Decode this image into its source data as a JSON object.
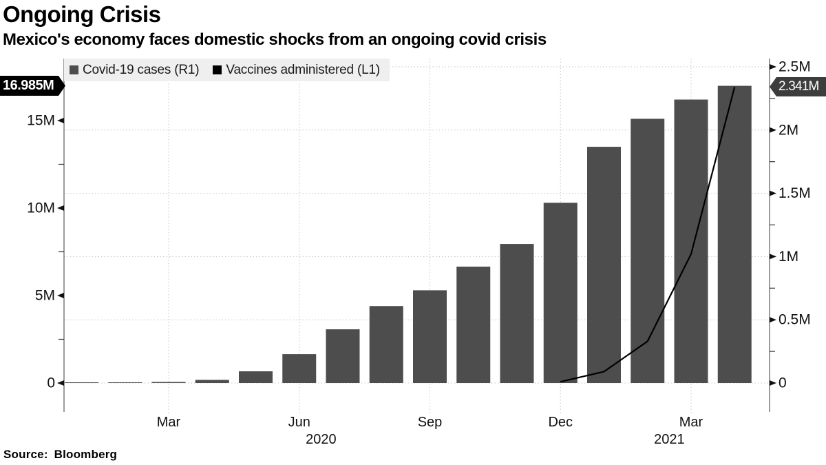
{
  "header": {
    "title": "Ongoing Crisis",
    "subtitle": "Mexico's economy faces domestic shocks from an ongoing covid crisis"
  },
  "legend": {
    "items": [
      {
        "label": "Covid-19 cases (R1)",
        "color": "#4d4d4d",
        "series_type": "bar"
      },
      {
        "label": "Vaccines administered (L1)",
        "color": "#000000",
        "series_type": "line"
      }
    ]
  },
  "callouts": {
    "left_value": "16.985M",
    "right_value": "2.341M"
  },
  "source": {
    "text": "Source: Bloomberg"
  },
  "colors": {
    "bar": "#4d4d4d",
    "line": "#000000",
    "legend_bg": "#efefef",
    "grid": "#c4c4c4",
    "axis": "#666666",
    "tick_text": "#111111",
    "badge_left_bg": "#000000",
    "badge_right_bg": "#3d3d3d"
  },
  "chart_data": {
    "type": "bar+line",
    "x": [
      "Jan 2020",
      "Feb 2020",
      "Mar 2020",
      "Apr 2020",
      "May 2020",
      "Jun 2020",
      "Jul 2020",
      "Aug 2020",
      "Sep 2020",
      "Oct 2020",
      "Nov 2020",
      "Dec 2020",
      "Jan 2021",
      "Feb 2021",
      "Mar 2021",
      "Apr 2021"
    ],
    "series": [
      {
        "name": "Covid-19 cases (R1)",
        "type": "bar",
        "axis": "left",
        "unit": "millions",
        "values": [
          0.03,
          0.04,
          0.06,
          0.18,
          0.67,
          1.65,
          3.07,
          4.4,
          5.3,
          6.65,
          7.95,
          10.3,
          13.5,
          15.1,
          16.2,
          16.985
        ],
        "end_label": "16.985M"
      },
      {
        "name": "Vaccines administered (L1)",
        "type": "line",
        "axis": "right",
        "unit": "millions",
        "values": [
          null,
          null,
          null,
          null,
          null,
          null,
          null,
          null,
          null,
          null,
          null,
          0.01,
          0.09,
          0.33,
          1.02,
          2.341
        ],
        "end_label": "2.341M"
      }
    ],
    "left_axis": {
      "min": 0,
      "max_shown": 16.985,
      "major_ticks": [
        {
          "v": 0,
          "label": "0"
        },
        {
          "v": 5,
          "label": "5M"
        },
        {
          "v": 10,
          "label": "10M"
        },
        {
          "v": 15,
          "label": "15M"
        }
      ],
      "minor_ticks": [
        2.5,
        7.5,
        12.5
      ]
    },
    "right_axis": {
      "min": 0,
      "max": 2.5,
      "major_ticks": [
        {
          "v": 0,
          "label": "0"
        },
        {
          "v": 0.5,
          "label": "0.5M"
        },
        {
          "v": 1,
          "label": "1M"
        },
        {
          "v": 1.5,
          "label": "1.5M"
        },
        {
          "v": 2,
          "label": "2M"
        },
        {
          "v": 2.5,
          "label": "2.5M"
        }
      ],
      "minor_ticks": [
        0.25,
        0.75,
        1.25,
        1.75,
        2.25
      ]
    },
    "x_axis": {
      "tick_labels": [
        {
          "text": "Mar",
          "index": 2
        },
        {
          "text": "Jun",
          "index": 5
        },
        {
          "text": "Sep",
          "index": 8
        },
        {
          "text": "Dec",
          "index": 11
        },
        {
          "text": "Mar",
          "index": 14
        }
      ],
      "year_labels": [
        {
          "text": "2020",
          "from_index": 0,
          "to_index": 11
        },
        {
          "text": "2021",
          "from_index": 12,
          "to_index": 15
        }
      ]
    },
    "grid": "dotted horizontal at right-axis majors, dotted vertical at labeled months",
    "legend_position": "top-left inside plot"
  }
}
